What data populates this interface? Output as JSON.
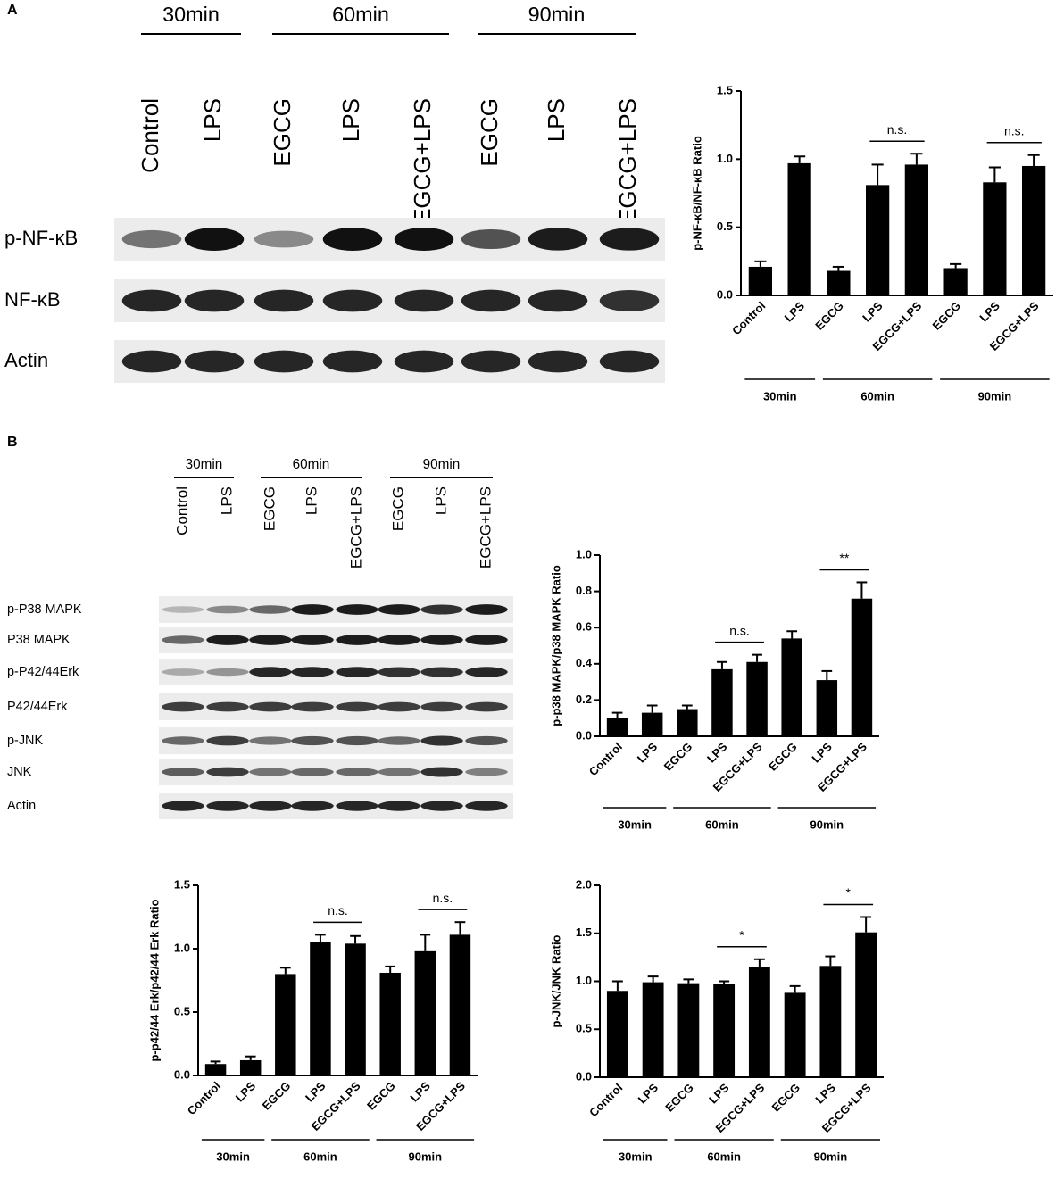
{
  "panels": [
    "A",
    "B"
  ],
  "blots": [
    {
      "groups": [
        "30min",
        "60min",
        "90min"
      ],
      "lanes": [
        "Control",
        "LPS",
        "EGCG",
        "LPS",
        "EGCG+LPS",
        "EGCG",
        "LPS",
        "EGCG+LPS"
      ],
      "rows": [
        "p-NF-κB",
        "NF-κB",
        "Actin"
      ]
    },
    {
      "groups": [
        "30min",
        "60min",
        "90min"
      ],
      "lanes": [
        "Control",
        "LPS",
        "EGCG",
        "LPS",
        "EGCG+LPS",
        "EGCG",
        "LPS",
        "EGCG+LPS"
      ],
      "rows": [
        "p-P38 MAPK",
        "P38 MAPK",
        "p-P42/44Erk",
        "P42/44Erk",
        "p-JNK",
        "JNK",
        "Actin"
      ]
    }
  ],
  "chart_data": [
    {
      "type": "bar",
      "ylabel": "p-NF-κB/NF-κB Ratio",
      "color": "#000000",
      "categories": [
        "Control",
        "LPS",
        "EGCG",
        "LPS",
        "EGCG+LPS",
        "EGCG",
        "LPS",
        "EGCG+LPS"
      ],
      "values": [
        0.21,
        0.97,
        0.18,
        0.81,
        0.96,
        0.2,
        0.83,
        0.95
      ],
      "errors": [
        0.04,
        0.05,
        0.03,
        0.15,
        0.08,
        0.03,
        0.11,
        0.08
      ],
      "ylim": [
        0,
        1.5
      ],
      "yticks": [
        {
          "value": 0,
          "label": "0.0"
        },
        0.5,
        {
          "value": 1,
          "label": "1.0"
        },
        1.5
      ],
      "groups": [
        "30min",
        "60min",
        "90min"
      ],
      "annotations": [
        "n.s.",
        "n.s."
      ]
    },
    {
      "type": "bar",
      "ylabel": "p-p38 MAPK/p38 MAPK Ratio",
      "color": "#000000",
      "categories": [
        "Control",
        "LPS",
        "EGCG",
        "LPS",
        "EGCG+LPS",
        "EGCG",
        "LPS",
        "EGCG+LPS"
      ],
      "values": [
        0.1,
        0.13,
        0.15,
        0.37,
        0.41,
        0.54,
        0.31,
        0.76
      ],
      "errors": [
        0.03,
        0.04,
        0.02,
        0.04,
        0.04,
        0.04,
        0.05,
        0.09
      ],
      "ylim": [
        0,
        1
      ],
      "yticks": [
        {
          "value": 0,
          "label": "0.0"
        },
        0.2,
        0.4,
        0.6,
        0.8,
        {
          "value": 1,
          "label": "1.0"
        }
      ],
      "groups": [
        "30min",
        "60min",
        "90min"
      ],
      "annotations": [
        "n.s.",
        "**"
      ]
    },
    {
      "type": "bar",
      "ylabel": "p-p42/44 Erk/p42/44 Erk Ratio",
      "color": "#000000",
      "categories": [
        "Control",
        "LPS",
        "EGCG",
        "LPS",
        "EGCG+LPS",
        "EGCG",
        "LPS",
        "EGCG+LPS"
      ],
      "values": [
        0.09,
        0.12,
        0.8,
        1.05,
        1.04,
        0.81,
        0.98,
        1.11
      ],
      "errors": [
        0.02,
        0.03,
        0.05,
        0.06,
        0.06,
        0.05,
        0.13,
        0.1
      ],
      "ylim": [
        0,
        1.5
      ],
      "yticks": [
        {
          "value": 0,
          "label": "0.0"
        },
        0.5,
        {
          "value": 1,
          "label": "1.0"
        },
        1.5
      ],
      "groups": [
        "30min",
        "60min",
        "90min"
      ],
      "annotations": [
        "n.s.",
        "n.s."
      ]
    },
    {
      "type": "bar",
      "ylabel": "p-JNK/JNK Ratio",
      "color": "#000000",
      "categories": [
        "Control",
        "LPS",
        "EGCG",
        "LPS",
        "EGCG+LPS",
        "EGCG",
        "LPS",
        "EGCG+LPS"
      ],
      "values": [
        0.9,
        0.99,
        0.98,
        0.97,
        1.15,
        0.88,
        1.16,
        1.51
      ],
      "errors": [
        0.1,
        0.06,
        0.04,
        0.03,
        0.08,
        0.07,
        0.1,
        0.16
      ],
      "ylim": [
        0,
        2
      ],
      "yticks": [
        {
          "value": 0,
          "label": "0.0"
        },
        0.5,
        {
          "value": 1,
          "label": "1.0"
        },
        1.5,
        {
          "value": 2,
          "label": "2.0"
        }
      ],
      "groups": [
        "30min",
        "60min",
        "90min"
      ],
      "annotations": [
        "*",
        "*"
      ]
    }
  ]
}
